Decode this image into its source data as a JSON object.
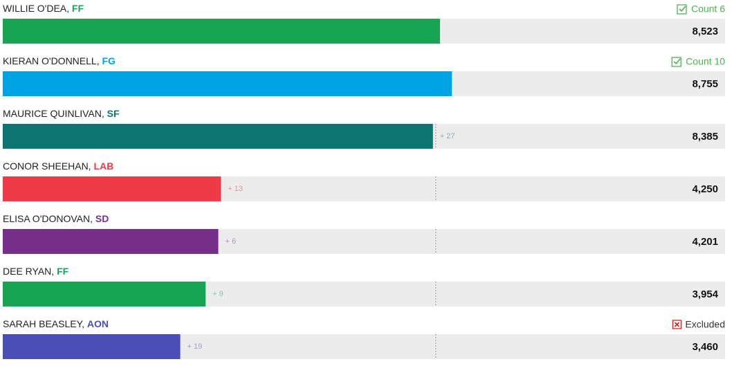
{
  "chart_data": {
    "type": "bar",
    "xlim": [
      0,
      14080
    ],
    "quota": 8440,
    "track_color": "#ececec",
    "candidates": [
      {
        "name": "WILLIE O'DEA, ",
        "party": "FF",
        "color": "#17a554",
        "votes": 8523,
        "votes_label": "8,523",
        "status": "Count 6",
        "status_kind": "elected"
      },
      {
        "name": "KIERAN O'DONNELL, ",
        "party": "FG",
        "color": "#00a3e4",
        "votes": 8755,
        "votes_label": "8,755",
        "status": "Count 10",
        "status_kind": "elected"
      },
      {
        "name": "MAURICE QUINLIVAN, ",
        "party": "SF",
        "color": "#0d7471",
        "votes": 8385,
        "votes_label": "8,385",
        "transfer": 27,
        "transfer_label": "+ 27"
      },
      {
        "name": "CONOR SHEEHAN, ",
        "party": "LAB",
        "color": "#ef3a47",
        "votes": 4250,
        "votes_label": "4,250",
        "transfer": 13,
        "transfer_label": "+ 13"
      },
      {
        "name": "ELISA O'DONOVAN, ",
        "party": "SD",
        "color": "#752f8a",
        "votes": 4201,
        "votes_label": "4,201",
        "transfer": 6,
        "transfer_label": "+ 6"
      },
      {
        "name": "DEE RYAN, ",
        "party": "FF",
        "color": "#17a554",
        "votes": 3954,
        "votes_label": "3,954",
        "transfer": 9,
        "transfer_label": "+ 9"
      },
      {
        "name": "SARAH BEASLEY, ",
        "party": "AON",
        "color": "#4a4fb5",
        "votes": 3460,
        "votes_label": "3,460",
        "transfer": 19,
        "transfer_label": "+ 19",
        "status": "Excluded",
        "status_kind": "excluded"
      }
    ]
  }
}
